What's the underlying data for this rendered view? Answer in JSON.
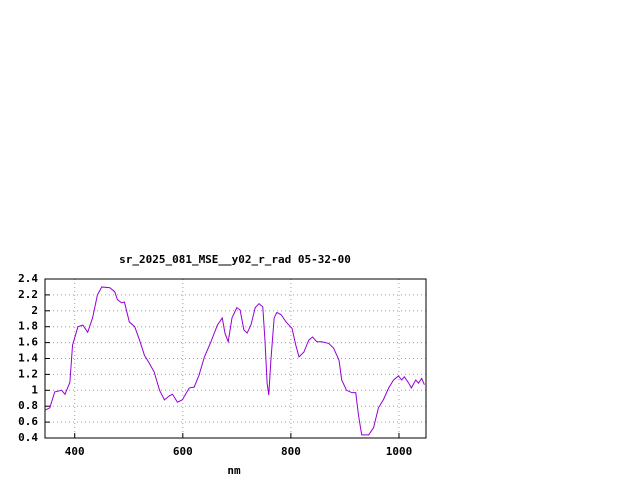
{
  "chart_data": {
    "type": "line",
    "title": "sr_2025_081_MSE__y02_r_rad 05-32-00",
    "x_label": "nm",
    "xlim": [
      345,
      1050
    ],
    "ylim": [
      0.4,
      2.4
    ],
    "xticks": [
      400,
      600,
      800,
      1000
    ],
    "yticks": [
      0.4,
      0.6,
      0.8,
      1,
      1.2,
      1.4,
      1.6,
      1.8,
      2,
      2.2,
      2.4
    ],
    "grid": true,
    "x": [
      345,
      354,
      363,
      376,
      382,
      391,
      396,
      406,
      415,
      424,
      433,
      442,
      450,
      465,
      474,
      479,
      487,
      492,
      501,
      511,
      520,
      529,
      538,
      547,
      557,
      566,
      575,
      581,
      590,
      599,
      612,
      621,
      630,
      640,
      652,
      664,
      673,
      678,
      684,
      691,
      700,
      706,
      713,
      719,
      726,
      734,
      741,
      748,
      752,
      756,
      759,
      763,
      769,
      774,
      782,
      791,
      802,
      809,
      815,
      824,
      833,
      840,
      848,
      857,
      870,
      879,
      889,
      894,
      903,
      913,
      920,
      925,
      931,
      944,
      953,
      962,
      971,
      981,
      990,
      999,
      1005,
      1010,
      1018,
      1023,
      1031,
      1036,
      1042,
      1047
    ],
    "series": [
      {
        "color": "#9400d3",
        "values": [
          0.75,
          0.78,
          0.98,
          1.0,
          0.95,
          1.1,
          1.57,
          1.8,
          1.82,
          1.73,
          1.91,
          2.2,
          2.3,
          2.29,
          2.24,
          2.14,
          2.1,
          2.11,
          1.86,
          1.8,
          1.63,
          1.44,
          1.34,
          1.23,
          1.0,
          0.88,
          0.93,
          0.95,
          0.85,
          0.88,
          1.03,
          1.04,
          1.19,
          1.42,
          1.61,
          1.82,
          1.91,
          1.72,
          1.61,
          1.91,
          2.04,
          2.01,
          1.76,
          1.72,
          1.82,
          2.04,
          2.09,
          2.05,
          1.63,
          1.09,
          0.94,
          1.38,
          1.91,
          1.98,
          1.95,
          1.86,
          1.78,
          1.57,
          1.42,
          1.48,
          1.63,
          1.67,
          1.61,
          1.61,
          1.59,
          1.53,
          1.38,
          1.13,
          1.0,
          0.97,
          0.97,
          0.69,
          0.44,
          0.44,
          0.53,
          0.78,
          0.88,
          1.03,
          1.13,
          1.18,
          1.13,
          1.17,
          1.09,
          1.03,
          1.13,
          1.09,
          1.15,
          1.07
        ]
      }
    ]
  }
}
